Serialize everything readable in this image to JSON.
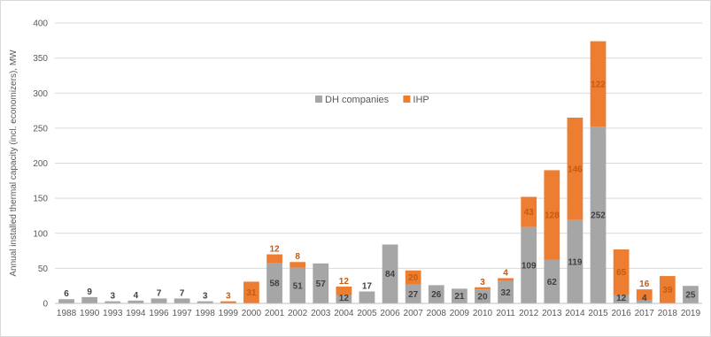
{
  "chart_data": {
    "type": "bar",
    "stacked": true,
    "title": "",
    "xlabel": "",
    "ylabel": "Annual installed thermal capacity (incl. economizers), MW",
    "ylim": [
      0,
      400
    ],
    "yticks": [
      0,
      50,
      100,
      150,
      200,
      250,
      300,
      350,
      400
    ],
    "grid": true,
    "legend_position": "center",
    "categories": [
      "1988",
      "1990",
      "1993",
      "1994",
      "1996",
      "1997",
      "1998",
      "1999",
      "2000",
      "2001",
      "2002",
      "2003",
      "2004",
      "2005",
      "2006",
      "2007",
      "2008",
      "2009",
      "2010",
      "2011",
      "2012",
      "2013",
      "2014",
      "2015",
      "2016",
      "2017",
      "2018",
      "2019"
    ],
    "series": [
      {
        "name": "DH companies",
        "color": "#a6a6a6",
        "label_color": "#404040",
        "values": [
          6,
          9,
          3,
          4,
          7,
          7,
          3,
          0,
          0,
          58,
          51,
          57,
          12,
          17,
          84,
          27,
          26,
          21,
          20,
          32,
          109,
          62,
          119,
          252,
          12,
          4,
          0,
          25
        ]
      },
      {
        "name": "IHP",
        "color": "#ed7d31",
        "label_color": "#c55a11",
        "values": [
          0,
          0,
          0,
          0,
          0,
          0,
          0,
          3,
          31,
          12,
          8,
          0,
          12,
          0,
          0,
          20,
          0,
          0,
          3,
          4,
          43,
          128,
          146,
          122,
          65,
          16,
          39,
          0
        ]
      }
    ]
  }
}
